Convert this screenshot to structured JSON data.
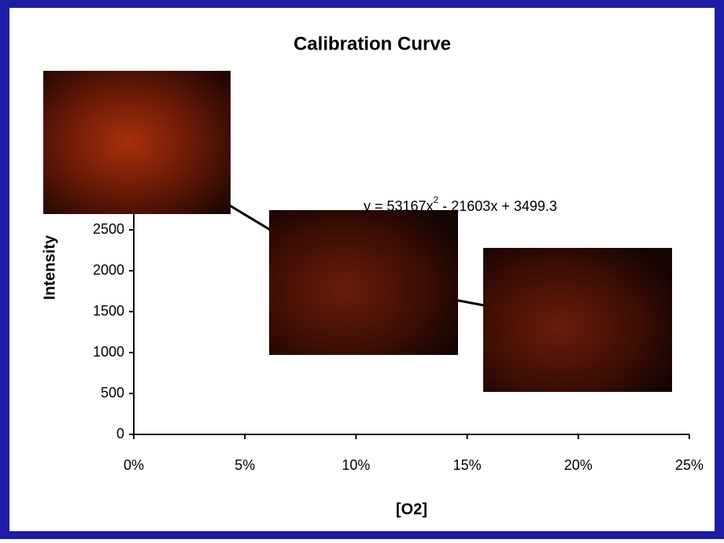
{
  "chart_data": {
    "type": "line",
    "title": "Calibration Curve",
    "x_label": "[O2]",
    "y_label": "Intensity",
    "annotation": {
      "parts": [
        "y = 53167x",
        "2",
        " - 21603x + 3499.3"
      ]
    },
    "x": [
      0,
      10,
      21
    ],
    "series": [
      {
        "name": "Intensity",
        "color": "#000000",
        "values": [
          3500,
          1870,
          1310
        ]
      }
    ],
    "xlim": [
      0,
      25
    ],
    "xticks": [
      {
        "value": 0,
        "label": "0%"
      },
      {
        "value": 5,
        "label": "5%"
      },
      {
        "value": 10,
        "label": "10%"
      },
      {
        "value": 15,
        "label": "15%"
      },
      {
        "value": 20,
        "label": "20%"
      },
      {
        "value": 25,
        "label": "25%"
      }
    ],
    "ylim": [
      0,
      3000
    ],
    "yticks": [
      0,
      500,
      1000,
      1500,
      2000,
      2500
    ]
  }
}
